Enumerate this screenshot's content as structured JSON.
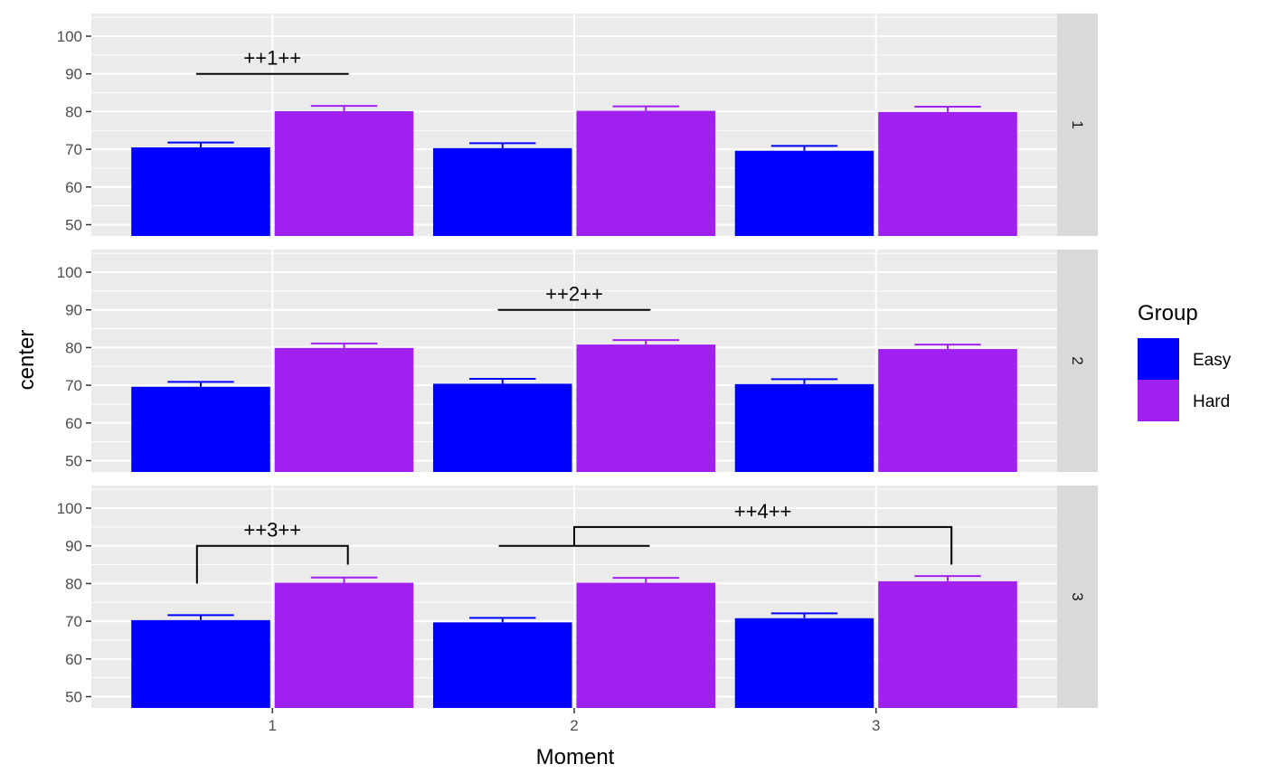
{
  "chart_data": {
    "type": "bar",
    "xlabel": "Moment",
    "ylabel": "center",
    "categories": [
      "1",
      "2",
      "3"
    ],
    "yticks": [
      50,
      60,
      70,
      80,
      90,
      100
    ],
    "ylim": [
      47,
      106
    ],
    "grid": true,
    "legend": {
      "title": "Group",
      "position": "right",
      "items": [
        {
          "name": "Easy",
          "color": "#0000ff"
        },
        {
          "name": "Hard",
          "color": "#a020f0"
        }
      ]
    },
    "panels": [
      {
        "strip": "1",
        "series": [
          {
            "name": "Easy",
            "color": "#0000ff",
            "values": [
              70.5,
              70.3,
              69.6
            ],
            "errors_upper": [
              71.8,
              71.6,
              70.9
            ]
          },
          {
            "name": "Hard",
            "color": "#a020f0",
            "values": [
              80.1,
              80.2,
              79.9
            ],
            "errors_upper": [
              81.5,
              81.4,
              81.3
            ]
          }
        ],
        "annotations": [
          {
            "label": "++1++",
            "x_from": 0.75,
            "x_to": 1.25,
            "y": 90,
            "left_tip": 89.8,
            "right_tip": 89.8
          }
        ]
      },
      {
        "strip": "2",
        "series": [
          {
            "name": "Easy",
            "color": "#0000ff",
            "values": [
              69.6,
              70.4,
              70.3
            ],
            "errors_upper": [
              70.9,
              71.7,
              71.6
            ]
          },
          {
            "name": "Hard",
            "color": "#a020f0",
            "values": [
              79.9,
              80.8,
              79.6
            ],
            "errors_upper": [
              81.1,
              82.0,
              80.8
            ]
          }
        ],
        "annotations": [
          {
            "label": "++2++",
            "x_from": 1.75,
            "x_to": 2.25,
            "y": 90,
            "left_tip": 89.8,
            "right_tip": 89.8
          }
        ]
      },
      {
        "strip": "3",
        "series": [
          {
            "name": "Easy",
            "color": "#0000ff",
            "values": [
              70.3,
              69.7,
              70.8
            ],
            "errors_upper": [
              71.6,
              70.9,
              72.1
            ]
          },
          {
            "name": "Hard",
            "color": "#a020f0",
            "values": [
              80.2,
              80.2,
              80.6
            ],
            "errors_upper": [
              81.6,
              81.5,
              82.0
            ]
          }
        ],
        "annotations": [
          {
            "label": "++3++",
            "x_from": 0.75,
            "x_to": 1.25,
            "y": 90,
            "left_tip": 80,
            "right_tip": 85
          },
          {
            "label": "++4++",
            "x_from": 2.0,
            "x_to": 3.25,
            "y": 95,
            "left_tip": 90,
            "right_tip": 85,
            "base": {
              "x_from": 1.75,
              "x_to": 2.25,
              "y": 90
            }
          }
        ]
      }
    ]
  }
}
